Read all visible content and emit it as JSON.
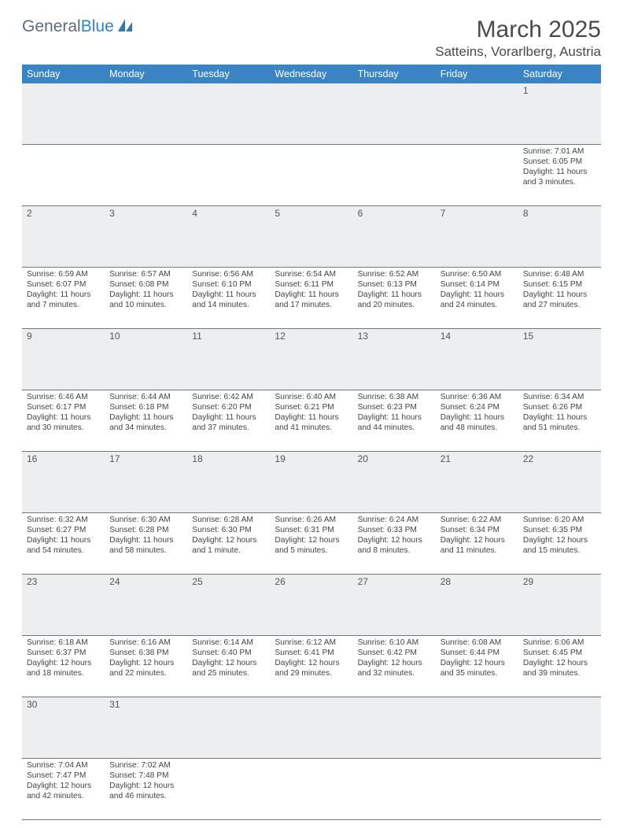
{
  "brand": {
    "part1": "General",
    "part2": "Blue"
  },
  "title": "March 2025",
  "location": "Satteins, Vorarlberg, Austria",
  "dayHeaders": [
    "Sunday",
    "Monday",
    "Tuesday",
    "Wednesday",
    "Thursday",
    "Friday",
    "Saturday"
  ],
  "colors": {
    "headerBg": "#3b84c4",
    "headerText": "#ffffff",
    "dayNumBg": "#eceeef",
    "border": "#3b84c4",
    "text": "#444444"
  },
  "weeks": [
    [
      null,
      null,
      null,
      null,
      null,
      null,
      {
        "n": "1",
        "sr": "7:01 AM",
        "ss": "6:05 PM",
        "dl": "11 hours and 3 minutes."
      }
    ],
    [
      {
        "n": "2",
        "sr": "6:59 AM",
        "ss": "6:07 PM",
        "dl": "11 hours and 7 minutes."
      },
      {
        "n": "3",
        "sr": "6:57 AM",
        "ss": "6:08 PM",
        "dl": "11 hours and 10 minutes."
      },
      {
        "n": "4",
        "sr": "6:56 AM",
        "ss": "6:10 PM",
        "dl": "11 hours and 14 minutes."
      },
      {
        "n": "5",
        "sr": "6:54 AM",
        "ss": "6:11 PM",
        "dl": "11 hours and 17 minutes."
      },
      {
        "n": "6",
        "sr": "6:52 AM",
        "ss": "6:13 PM",
        "dl": "11 hours and 20 minutes."
      },
      {
        "n": "7",
        "sr": "6:50 AM",
        "ss": "6:14 PM",
        "dl": "11 hours and 24 minutes."
      },
      {
        "n": "8",
        "sr": "6:48 AM",
        "ss": "6:15 PM",
        "dl": "11 hours and 27 minutes."
      }
    ],
    [
      {
        "n": "9",
        "sr": "6:46 AM",
        "ss": "6:17 PM",
        "dl": "11 hours and 30 minutes."
      },
      {
        "n": "10",
        "sr": "6:44 AM",
        "ss": "6:18 PM",
        "dl": "11 hours and 34 minutes."
      },
      {
        "n": "11",
        "sr": "6:42 AM",
        "ss": "6:20 PM",
        "dl": "11 hours and 37 minutes."
      },
      {
        "n": "12",
        "sr": "6:40 AM",
        "ss": "6:21 PM",
        "dl": "11 hours and 41 minutes."
      },
      {
        "n": "13",
        "sr": "6:38 AM",
        "ss": "6:23 PM",
        "dl": "11 hours and 44 minutes."
      },
      {
        "n": "14",
        "sr": "6:36 AM",
        "ss": "6:24 PM",
        "dl": "11 hours and 48 minutes."
      },
      {
        "n": "15",
        "sr": "6:34 AM",
        "ss": "6:26 PM",
        "dl": "11 hours and 51 minutes."
      }
    ],
    [
      {
        "n": "16",
        "sr": "6:32 AM",
        "ss": "6:27 PM",
        "dl": "11 hours and 54 minutes."
      },
      {
        "n": "17",
        "sr": "6:30 AM",
        "ss": "6:28 PM",
        "dl": "11 hours and 58 minutes."
      },
      {
        "n": "18",
        "sr": "6:28 AM",
        "ss": "6:30 PM",
        "dl": "12 hours and 1 minute."
      },
      {
        "n": "19",
        "sr": "6:26 AM",
        "ss": "6:31 PM",
        "dl": "12 hours and 5 minutes."
      },
      {
        "n": "20",
        "sr": "6:24 AM",
        "ss": "6:33 PM",
        "dl": "12 hours and 8 minutes."
      },
      {
        "n": "21",
        "sr": "6:22 AM",
        "ss": "6:34 PM",
        "dl": "12 hours and 11 minutes."
      },
      {
        "n": "22",
        "sr": "6:20 AM",
        "ss": "6:35 PM",
        "dl": "12 hours and 15 minutes."
      }
    ],
    [
      {
        "n": "23",
        "sr": "6:18 AM",
        "ss": "6:37 PM",
        "dl": "12 hours and 18 minutes."
      },
      {
        "n": "24",
        "sr": "6:16 AM",
        "ss": "6:38 PM",
        "dl": "12 hours and 22 minutes."
      },
      {
        "n": "25",
        "sr": "6:14 AM",
        "ss": "6:40 PM",
        "dl": "12 hours and 25 minutes."
      },
      {
        "n": "26",
        "sr": "6:12 AM",
        "ss": "6:41 PM",
        "dl": "12 hours and 29 minutes."
      },
      {
        "n": "27",
        "sr": "6:10 AM",
        "ss": "6:42 PM",
        "dl": "12 hours and 32 minutes."
      },
      {
        "n": "28",
        "sr": "6:08 AM",
        "ss": "6:44 PM",
        "dl": "12 hours and 35 minutes."
      },
      {
        "n": "29",
        "sr": "6:06 AM",
        "ss": "6:45 PM",
        "dl": "12 hours and 39 minutes."
      }
    ],
    [
      {
        "n": "30",
        "sr": "7:04 AM",
        "ss": "7:47 PM",
        "dl": "12 hours and 42 minutes."
      },
      {
        "n": "31",
        "sr": "7:02 AM",
        "ss": "7:48 PM",
        "dl": "12 hours and 46 minutes."
      },
      null,
      null,
      null,
      null,
      null
    ]
  ],
  "labels": {
    "sunrise": "Sunrise: ",
    "sunset": "Sunset: ",
    "daylight": "Daylight: "
  }
}
